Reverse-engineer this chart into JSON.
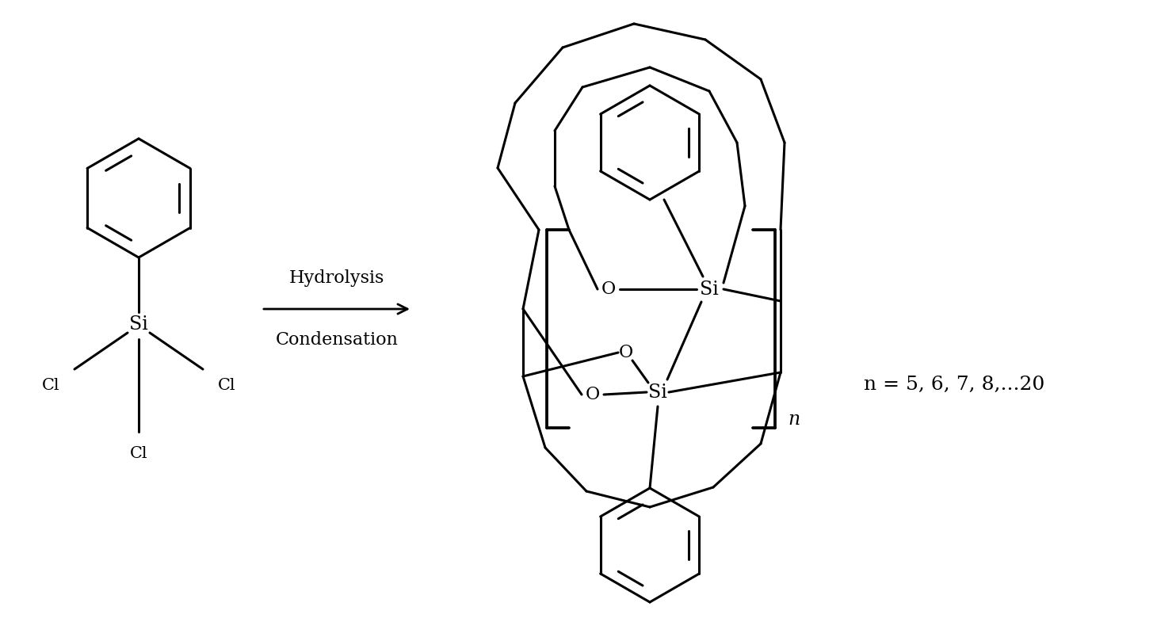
{
  "background_color": "#ffffff",
  "line_color": "#000000",
  "line_width": 2.2,
  "fig_width": 14.6,
  "fig_height": 7.8,
  "dpi": 100,
  "arrow_text_line1": "Hydrolysis",
  "arrow_text_line2": "Condensation",
  "n_label": "n = 5, 6, 7, 8,...20",
  "font_size_labels": 16,
  "font_size_atoms": 15,
  "font_size_n": 18
}
